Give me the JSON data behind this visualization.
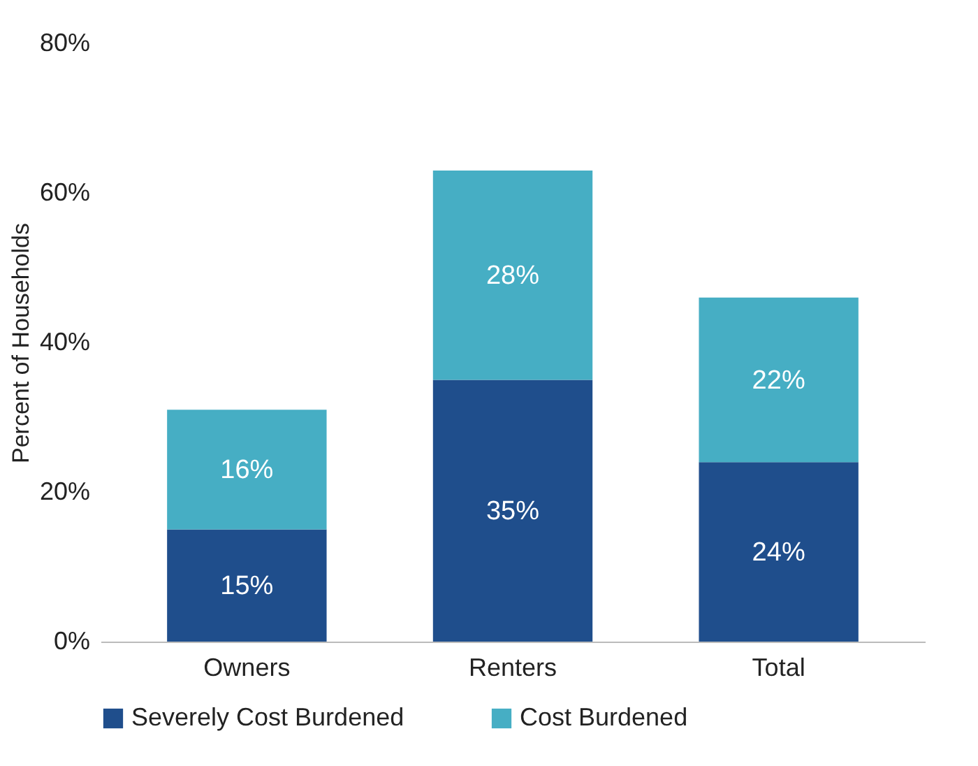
{
  "chart_data": {
    "type": "bar",
    "stacked": true,
    "ylabel": "Percent of Households",
    "categories": [
      "Owners",
      "Renters",
      "Total"
    ],
    "series": [
      {
        "name": "Severely Cost Burdened",
        "color": "#1f4e8c",
        "values": [
          15,
          35,
          24
        ],
        "value_labels": [
          "15%",
          "35%",
          "24%"
        ]
      },
      {
        "name": "Cost Burdened",
        "color": "#46aec4",
        "values": [
          16,
          28,
          22
        ],
        "value_labels": [
          "16%",
          "28%",
          "22%"
        ]
      }
    ],
    "ylim": [
      0,
      80
    ],
    "yticks": [
      {
        "value": 0,
        "label": "0%"
      },
      {
        "value": 20,
        "label": "20%"
      },
      {
        "value": 40,
        "label": "40%"
      },
      {
        "value": 60,
        "label": "60%"
      },
      {
        "value": 80,
        "label": "80%"
      }
    ],
    "grid": false,
    "legend": "bottom"
  }
}
